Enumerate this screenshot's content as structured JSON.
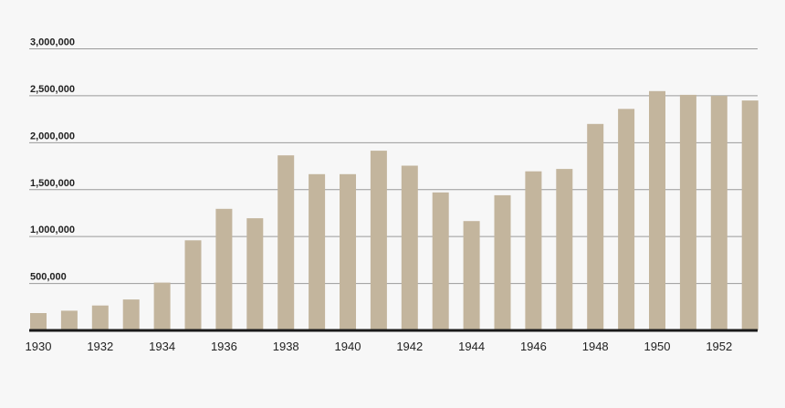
{
  "chart_data": {
    "type": "bar",
    "categories": [
      "1930",
      "1931",
      "1932",
      "1933",
      "1934",
      "1935",
      "1936",
      "1937",
      "1938",
      "1939",
      "1940",
      "1941",
      "1942",
      "1943",
      "1944",
      "1945",
      "1946",
      "1947",
      "1948",
      "1949",
      "1950",
      "1951",
      "1952",
      "1953"
    ],
    "values": [
      185000,
      210000,
      265000,
      330000,
      510000,
      960000,
      1295000,
      1195000,
      1865000,
      1665000,
      1665000,
      1915000,
      1755000,
      1470000,
      1165000,
      1440000,
      1695000,
      1720000,
      2200000,
      2360000,
      2550000,
      2510000,
      2500000,
      2450000
    ],
    "x_tick_labels": [
      "1930",
      "1932",
      "1934",
      "1936",
      "1938",
      "1940",
      "1942",
      "1944",
      "1946",
      "1948",
      "1950",
      "1952"
    ],
    "y_tick_labels": [
      "500,000",
      "1,000,000",
      "1,500,000",
      "2,000,000",
      "2,500,000",
      "3,000,000"
    ],
    "y_ticks": [
      500000,
      1000000,
      1500000,
      2000000,
      2500000,
      3000000
    ],
    "ylim": [
      0,
      3000000
    ],
    "title": "",
    "xlabel": "",
    "ylabel": "",
    "grid": true,
    "colors": {
      "bar": "#c3b59d",
      "grid": "#9a9a9a",
      "axis": "#1a1a1a",
      "background": "#f7f7f7"
    }
  }
}
